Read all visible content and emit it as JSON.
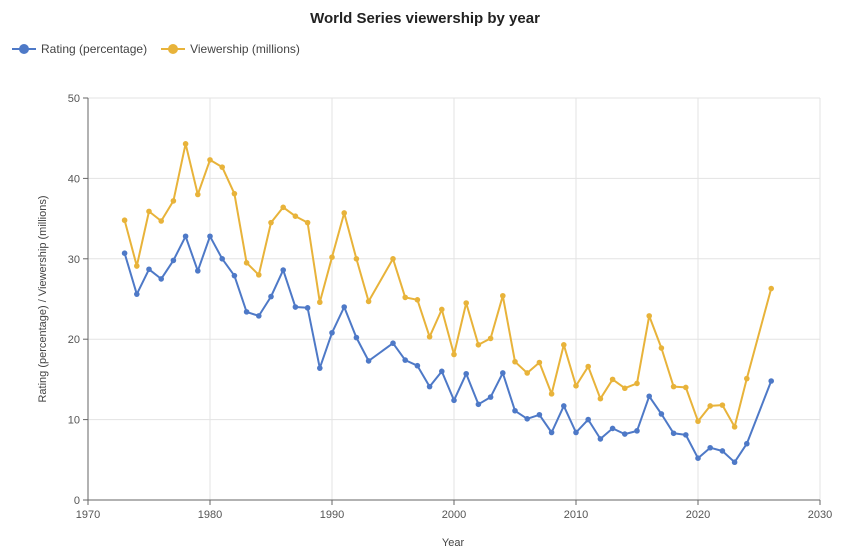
{
  "chart_data": {
    "type": "line",
    "title": "World Series viewership by year",
    "xlabel": "Year",
    "ylabel": "Rating (percentage) / Viewership (millions)",
    "xlim": [
      1970,
      2030
    ],
    "ylim": [
      0,
      50
    ],
    "xticks": [
      1970,
      1980,
      1990,
      2000,
      2010,
      2020,
      2030
    ],
    "yticks": [
      0,
      10,
      20,
      30,
      40,
      50
    ],
    "grid": true,
    "legend_position": "top-left",
    "series": [
      {
        "name": "Rating (percentage)",
        "color": "#4e79c7",
        "points": [
          [
            1973,
            30.7
          ],
          [
            1974,
            25.6
          ],
          [
            1975,
            28.7
          ],
          [
            1976,
            27.5
          ],
          [
            1977,
            29.8
          ],
          [
            1978,
            32.8
          ],
          [
            1979,
            28.5
          ],
          [
            1980,
            32.8
          ],
          [
            1981,
            30.0
          ],
          [
            1982,
            27.9
          ],
          [
            1983,
            23.4
          ],
          [
            1984,
            22.9
          ],
          [
            1985,
            25.3
          ],
          [
            1986,
            28.6
          ],
          [
            1987,
            24.0
          ],
          [
            1988,
            23.9
          ],
          [
            1989,
            16.4
          ],
          [
            1990,
            20.8
          ],
          [
            1991,
            24.0
          ],
          [
            1992,
            20.2
          ],
          [
            1993,
            17.3
          ],
          [
            1995,
            19.5
          ],
          [
            1996,
            17.4
          ],
          [
            1997,
            16.7
          ],
          [
            1998,
            14.1
          ],
          [
            1999,
            16.0
          ],
          [
            2000,
            12.4
          ],
          [
            2001,
            15.7
          ],
          [
            2002,
            11.9
          ],
          [
            2003,
            12.8
          ],
          [
            2004,
            15.8
          ],
          [
            2005,
            11.1
          ],
          [
            2006,
            10.1
          ],
          [
            2007,
            10.6
          ],
          [
            2008,
            8.4
          ],
          [
            2009,
            11.7
          ],
          [
            2010,
            8.4
          ],
          [
            2011,
            10.0
          ],
          [
            2012,
            7.6
          ],
          [
            2013,
            8.9
          ],
          [
            2014,
            8.2
          ],
          [
            2015,
            8.6
          ],
          [
            2016,
            12.9
          ],
          [
            2017,
            10.7
          ],
          [
            2018,
            8.3
          ],
          [
            2019,
            8.1
          ],
          [
            2020,
            5.2
          ],
          [
            2021,
            6.5
          ],
          [
            2022,
            6.1
          ],
          [
            2023,
            4.7
          ],
          [
            2024,
            7.0
          ],
          [
            2026,
            14.8
          ]
        ]
      },
      {
        "name": "Viewership (millions)",
        "color": "#e8b33a",
        "points": [
          [
            1973,
            34.8
          ],
          [
            1974,
            29.1
          ],
          [
            1975,
            35.9
          ],
          [
            1976,
            34.7
          ],
          [
            1977,
            37.2
          ],
          [
            1978,
            44.3
          ],
          [
            1979,
            38.0
          ],
          [
            1980,
            42.3
          ],
          [
            1981,
            41.4
          ],
          [
            1982,
            38.1
          ],
          [
            1983,
            29.5
          ],
          [
            1984,
            28.0
          ],
          [
            1985,
            34.5
          ],
          [
            1986,
            36.4
          ],
          [
            1987,
            35.3
          ],
          [
            1988,
            34.5
          ],
          [
            1989,
            24.6
          ],
          [
            1990,
            30.2
          ],
          [
            1991,
            35.7
          ],
          [
            1992,
            30.0
          ],
          [
            1993,
            24.7
          ],
          [
            1995,
            30.0
          ],
          [
            1996,
            25.2
          ],
          [
            1997,
            24.9
          ],
          [
            1998,
            20.3
          ],
          [
            1999,
            23.7
          ],
          [
            2000,
            18.1
          ],
          [
            2001,
            24.5
          ],
          [
            2002,
            19.3
          ],
          [
            2003,
            20.1
          ],
          [
            2004,
            25.4
          ],
          [
            2005,
            17.2
          ],
          [
            2006,
            15.8
          ],
          [
            2007,
            17.1
          ],
          [
            2008,
            13.2
          ],
          [
            2009,
            19.3
          ],
          [
            2010,
            14.2
          ],
          [
            2011,
            16.6
          ],
          [
            2012,
            12.6
          ],
          [
            2013,
            15.0
          ],
          [
            2014,
            13.9
          ],
          [
            2015,
            14.5
          ],
          [
            2016,
            22.9
          ],
          [
            2017,
            18.9
          ],
          [
            2018,
            14.1
          ],
          [
            2019,
            14.0
          ],
          [
            2020,
            9.8
          ],
          [
            2021,
            11.7
          ],
          [
            2022,
            11.8
          ],
          [
            2023,
            9.1
          ],
          [
            2024,
            15.1
          ],
          [
            2026,
            26.3
          ]
        ]
      }
    ]
  }
}
